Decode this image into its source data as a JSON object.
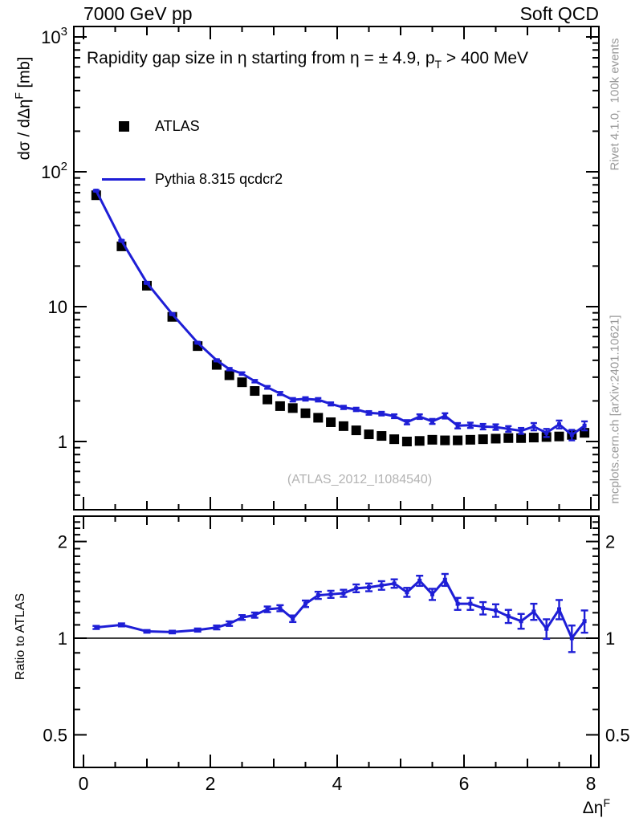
{
  "header": {
    "left_title": "7000 GeV pp",
    "right_title": "Soft QCD"
  },
  "main_panel": {
    "title_pre": "Rapidity gap size in η starting from η = ± 4.9, p",
    "title_sub": "T",
    "title_post": " > 400 MeV",
    "ylabel_pre": "dσ / dΔη",
    "ylabel_sup": "F",
    "ylabel_post": " [mb]",
    "yticks": [
      {
        "v": 1000,
        "base": "10",
        "exp": "3"
      },
      {
        "v": 100,
        "base": "10",
        "exp": "2"
      },
      {
        "v": 10,
        "base": "10",
        "exp": ""
      },
      {
        "v": 1,
        "base": "1",
        "exp": ""
      }
    ],
    "watermark": "(ATLAS_2012_I1084540)"
  },
  "legend": {
    "items": [
      {
        "label": "ATLAS",
        "marker": "black-square"
      },
      {
        "label": "Pythia 8.315 qcdcr2",
        "marker": "blue-line"
      }
    ]
  },
  "ratio_panel": {
    "ylabel": "Ratio to ATLAS",
    "yticks": [
      {
        "v": 2,
        "label": "2"
      },
      {
        "v": 1,
        "label": "1"
      },
      {
        "v": 0.5,
        "label": "0.5"
      }
    ]
  },
  "xaxis": {
    "label_pre": "Δη",
    "label_sup": "F",
    "ticks": [
      {
        "v": 0,
        "label": "0"
      },
      {
        "v": 2,
        "label": "2"
      },
      {
        "v": 4,
        "label": "4"
      },
      {
        "v": 6,
        "label": "6"
      },
      {
        "v": 8,
        "label": "8"
      }
    ]
  },
  "side_notes": {
    "top": "Rivet 4.1.0,  100k events",
    "bottom": "mcplots.cern.ch [arXiv:2401.10621]"
  },
  "colors": {
    "pythia_blue": "#1e1ed6",
    "frame": "#000000",
    "gray_text": "#999999",
    "watermark": "#b3b3b3"
  },
  "chart_data": [
    {
      "type": "line",
      "title": "Rapidity gap size in η starting from η = ± 4.9, pT > 400 MeV",
      "xlabel": "ΔηF",
      "ylabel": "dσ / dΔηF [mb]",
      "yscale": "log",
      "xlim": [
        -0.15,
        8.13
      ],
      "ylim": [
        0.31,
        1200
      ],
      "legend_position": "top-left",
      "x": [
        0.2,
        0.6,
        1.0,
        1.4,
        1.8,
        2.1,
        2.3,
        2.5,
        2.7,
        2.9,
        3.1,
        3.3,
        3.5,
        3.7,
        3.9,
        4.1,
        4.3,
        4.5,
        4.7,
        4.9,
        5.1,
        5.3,
        5.5,
        5.7,
        5.9,
        6.1,
        6.3,
        6.5,
        6.7,
        6.9,
        7.1,
        7.3,
        7.5,
        7.7,
        7.9
      ],
      "series": [
        {
          "name": "ATLAS",
          "style": "scatter-square",
          "color": "#000000",
          "values": [
            67,
            28,
            14.3,
            8.4,
            5.1,
            3.7,
            3.1,
            2.75,
            2.37,
            2.05,
            1.83,
            1.77,
            1.62,
            1.5,
            1.39,
            1.3,
            1.21,
            1.13,
            1.1,
            1.04,
            1.0,
            1.01,
            1.03,
            1.02,
            1.02,
            1.03,
            1.04,
            1.05,
            1.06,
            1.06,
            1.07,
            1.08,
            1.09,
            1.12,
            1.16
          ]
        },
        {
          "name": "Pythia 8.315 qcdcr2",
          "style": "line-errorbars",
          "color": "#1e1ed6",
          "values": [
            72.4,
            30.8,
            15.0,
            8.8,
            5.4,
            4.0,
            3.44,
            3.19,
            2.8,
            2.52,
            2.27,
            2.04,
            2.07,
            2.04,
            1.9,
            1.79,
            1.73,
            1.63,
            1.61,
            1.54,
            1.39,
            1.53,
            1.41,
            1.55,
            1.31,
            1.32,
            1.29,
            1.28,
            1.24,
            1.2,
            1.29,
            1.16,
            1.34,
            1.12,
            1.31
          ],
          "errors": [
            0.9,
            0.4,
            0.2,
            0.12,
            0.08,
            0.07,
            0.07,
            0.07,
            0.06,
            0.06,
            0.06,
            0.06,
            0.06,
            0.06,
            0.05,
            0.05,
            0.05,
            0.05,
            0.05,
            0.05,
            0.05,
            0.06,
            0.06,
            0.07,
            0.06,
            0.06,
            0.06,
            0.06,
            0.06,
            0.06,
            0.08,
            0.08,
            0.09,
            0.1,
            0.1
          ]
        }
      ]
    },
    {
      "type": "line",
      "title": "Ratio to ATLAS",
      "ylabel": "Ratio to ATLAS",
      "yscale": "log",
      "xlim": [
        -0.15,
        8.13
      ],
      "ylim": [
        0.395,
        2.4
      ],
      "ref_line": 1.0,
      "x": [
        0.2,
        0.6,
        1.0,
        1.4,
        1.8,
        2.1,
        2.3,
        2.5,
        2.7,
        2.9,
        3.1,
        3.3,
        3.5,
        3.7,
        3.9,
        4.1,
        4.3,
        4.5,
        4.7,
        4.9,
        5.1,
        5.3,
        5.5,
        5.7,
        5.9,
        6.1,
        6.3,
        6.5,
        6.7,
        6.9,
        7.1,
        7.3,
        7.5,
        7.7,
        7.9
      ],
      "series": [
        {
          "name": "Pythia 8.315 qcdcr2 / ATLAS",
          "style": "line-errorbars",
          "color": "#1e1ed6",
          "values": [
            1.08,
            1.1,
            1.05,
            1.045,
            1.06,
            1.08,
            1.11,
            1.16,
            1.18,
            1.23,
            1.24,
            1.15,
            1.28,
            1.36,
            1.37,
            1.38,
            1.43,
            1.44,
            1.46,
            1.48,
            1.39,
            1.51,
            1.37,
            1.52,
            1.28,
            1.28,
            1.24,
            1.22,
            1.17,
            1.13,
            1.21,
            1.07,
            1.23,
            1.0,
            1.13
          ],
          "errors": [
            0.012,
            0.012,
            0.01,
            0.01,
            0.012,
            0.015,
            0.018,
            0.02,
            0.022,
            0.025,
            0.027,
            0.027,
            0.03,
            0.035,
            0.035,
            0.035,
            0.04,
            0.04,
            0.045,
            0.045,
            0.045,
            0.055,
            0.055,
            0.065,
            0.055,
            0.055,
            0.055,
            0.055,
            0.055,
            0.06,
            0.07,
            0.075,
            0.085,
            0.095,
            0.09
          ]
        }
      ]
    }
  ]
}
